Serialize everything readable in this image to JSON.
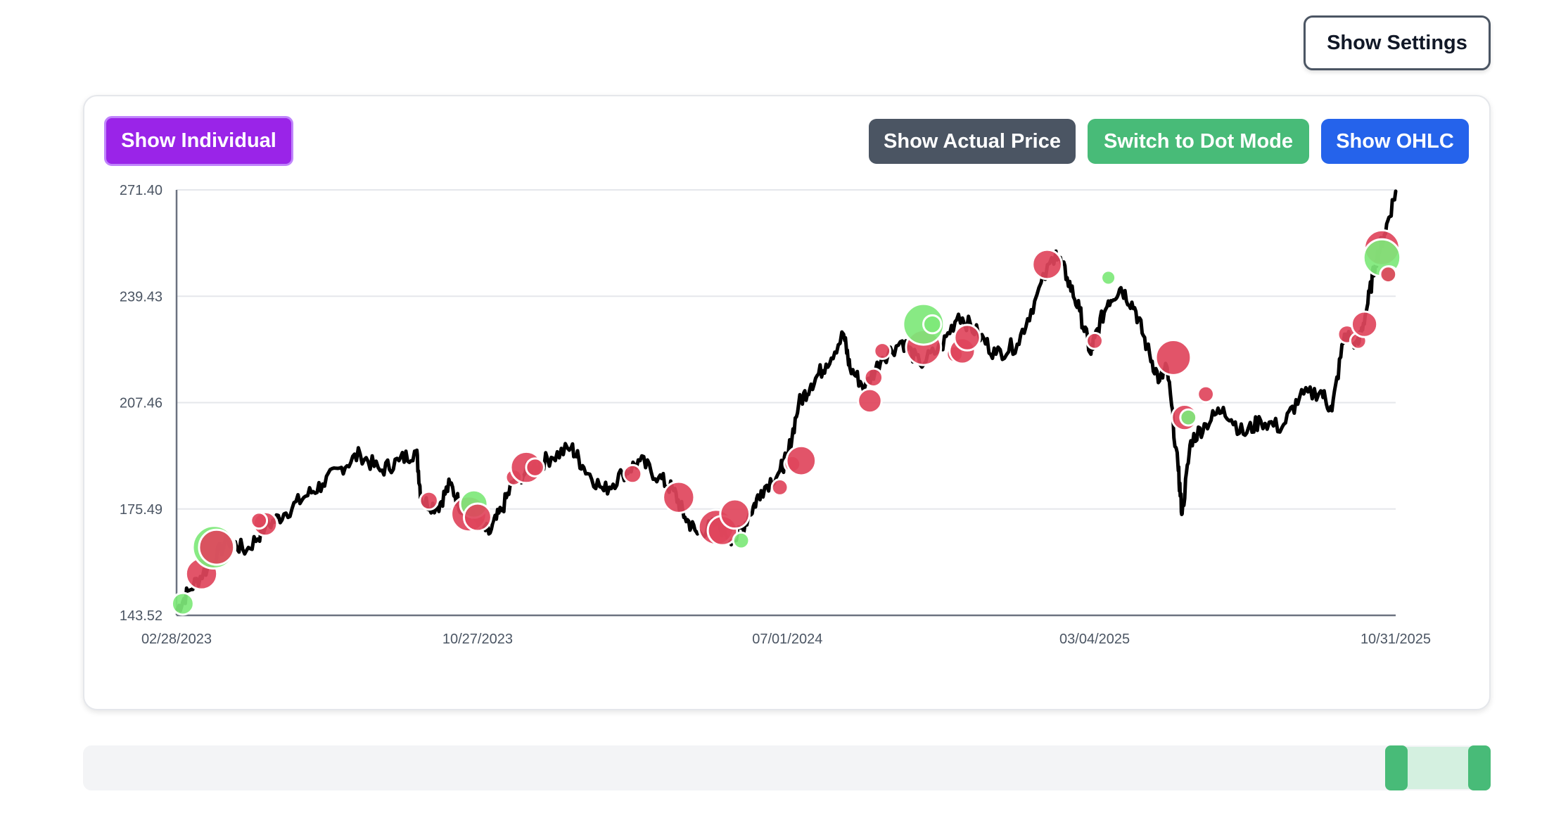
{
  "toolbar": {
    "settings_label": "Show Settings",
    "individual_label": "Show Individual",
    "actual_price_label": "Show Actual Price",
    "dot_mode_label": "Switch to Dot Mode",
    "ohlc_label": "Show OHLC"
  },
  "colors": {
    "price_line": "#000000",
    "buy_marker": "#7ee87a",
    "sell_marker": "#e0455c",
    "individual_button": "#9a24e8",
    "actual_price_button": "#4b5563",
    "dot_mode_button": "#48bb78",
    "ohlc_button": "#2563eb",
    "slider_handle": "#48bb78"
  },
  "range_slider": {
    "start_fraction": 0.94,
    "end_fraction": 1.0
  },
  "chart_data": {
    "type": "line",
    "title": "",
    "xlabel": "",
    "ylabel": "",
    "ylim": [
      143.52,
      271.4
    ],
    "yticks": [
      "143.52",
      "175.49",
      "207.46",
      "239.43",
      "271.40"
    ],
    "xticks": [
      "02/28/2023",
      "10/27/2023",
      "07/01/2024",
      "03/04/2025",
      "10/31/2025"
    ],
    "grid": "horizontal",
    "series": [
      {
        "points": [
          [
            "2023-02-28",
            145
          ],
          [
            "2023-03-10",
            151
          ],
          [
            "2023-03-25",
            158
          ],
          [
            "2023-04-10",
            166
          ],
          [
            "2023-04-25",
            163
          ],
          [
            "2023-05-10",
            170
          ],
          [
            "2023-05-25",
            174
          ],
          [
            "2023-06-10",
            179
          ],
          [
            "2023-06-25",
            183
          ],
          [
            "2023-07-10",
            188
          ],
          [
            "2023-07-25",
            192
          ],
          [
            "2023-08-10",
            187
          ],
          [
            "2023-08-25",
            190
          ],
          [
            "2023-09-08",
            193
          ],
          [
            "2023-09-12",
            178
          ],
          [
            "2023-09-25",
            176
          ],
          [
            "2023-10-05",
            183
          ],
          [
            "2023-10-15",
            175
          ],
          [
            "2023-10-27",
            172
          ],
          [
            "2023-11-05",
            168
          ],
          [
            "2023-11-15",
            175
          ],
          [
            "2023-11-25",
            184
          ],
          [
            "2023-12-10",
            188
          ],
          [
            "2023-12-25",
            191
          ],
          [
            "2024-01-10",
            194
          ],
          [
            "2024-01-20",
            188
          ],
          [
            "2024-02-05",
            181
          ],
          [
            "2024-02-20",
            186
          ],
          [
            "2024-03-05",
            190
          ],
          [
            "2024-03-20",
            185
          ],
          [
            "2024-04-01",
            181
          ],
          [
            "2024-04-10",
            173
          ],
          [
            "2024-04-20",
            168
          ],
          [
            "2024-05-05",
            171
          ],
          [
            "2024-05-20",
            166
          ],
          [
            "2024-06-01",
            174
          ],
          [
            "2024-06-10",
            181
          ],
          [
            "2024-06-25",
            187
          ],
          [
            "2024-07-01",
            191
          ],
          [
            "2024-07-10",
            207
          ],
          [
            "2024-07-20",
            213
          ],
          [
            "2024-08-01",
            219
          ],
          [
            "2024-08-15",
            228
          ],
          [
            "2024-08-20",
            218
          ],
          [
            "2024-09-01",
            212
          ],
          [
            "2024-09-15",
            221
          ],
          [
            "2024-10-01",
            226
          ],
          [
            "2024-10-15",
            219
          ],
          [
            "2024-11-01",
            224
          ],
          [
            "2024-11-15",
            234
          ],
          [
            "2024-12-01",
            228
          ],
          [
            "2024-12-15",
            222
          ],
          [
            "2025-01-01",
            225
          ],
          [
            "2025-01-15",
            238
          ],
          [
            "2025-02-01",
            253
          ],
          [
            "2025-02-10",
            245
          ],
          [
            "2025-02-20",
            235
          ],
          [
            "2025-03-01",
            222
          ],
          [
            "2025-03-04",
            227
          ],
          [
            "2025-03-15",
            238
          ],
          [
            "2025-03-25",
            242
          ],
          [
            "2025-04-05",
            236
          ],
          [
            "2025-04-15",
            224
          ],
          [
            "2025-04-25",
            214
          ],
          [
            "2025-05-01",
            218
          ],
          [
            "2025-05-10",
            187
          ],
          [
            "2025-05-13",
            174
          ],
          [
            "2025-05-20",
            196
          ],
          [
            "2025-06-01",
            201
          ],
          [
            "2025-06-15",
            206
          ],
          [
            "2025-07-01",
            198
          ],
          [
            "2025-07-15",
            202
          ],
          [
            "2025-08-01",
            200
          ],
          [
            "2025-08-15",
            209
          ],
          [
            "2025-09-01",
            211
          ],
          [
            "2025-09-10",
            205
          ],
          [
            "2025-09-20",
            228
          ],
          [
            "2025-10-01",
            225
          ],
          [
            "2025-10-08",
            236
          ],
          [
            "2025-10-15",
            250
          ],
          [
            "2025-10-22",
            258
          ],
          [
            "2025-10-31",
            271
          ]
        ]
      }
    ],
    "markers": [
      {
        "date": "2023-03-05",
        "price": 147,
        "signal": "buy",
        "size": 7
      },
      {
        "date": "2023-03-20",
        "price": 156,
        "signal": "sell",
        "size": 12
      },
      {
        "date": "2023-03-30",
        "price": 164,
        "signal": "buy",
        "size": 18
      },
      {
        "date": "2023-04-01",
        "price": 164,
        "signal": "sell",
        "size": 14
      },
      {
        "date": "2023-05-10",
        "price": 171,
        "signal": "sell",
        "size": 8
      },
      {
        "date": "2023-05-05",
        "price": 172,
        "signal": "sell",
        "size": 4
      },
      {
        "date": "2023-09-18",
        "price": 178,
        "signal": "sell",
        "size": 5
      },
      {
        "date": "2023-10-20",
        "price": 174,
        "signal": "sell",
        "size": 14
      },
      {
        "date": "2023-10-24",
        "price": 177,
        "signal": "buy",
        "size": 10
      },
      {
        "date": "2023-10-27",
        "price": 173,
        "signal": "sell",
        "size": 10
      },
      {
        "date": "2023-11-25",
        "price": 185,
        "signal": "sell",
        "size": 4
      },
      {
        "date": "2023-12-05",
        "price": 188,
        "signal": "sell",
        "size": 12
      },
      {
        "date": "2023-12-12",
        "price": 188,
        "signal": "sell",
        "size": 5
      },
      {
        "date": "2024-02-28",
        "price": 186,
        "signal": "sell",
        "size": 5
      },
      {
        "date": "2024-04-05",
        "price": 179,
        "signal": "sell",
        "size": 12
      },
      {
        "date": "2024-05-05",
        "price": 170,
        "signal": "sell",
        "size": 14
      },
      {
        "date": "2024-05-10",
        "price": 169,
        "signal": "sell",
        "size": 11
      },
      {
        "date": "2024-05-20",
        "price": 174,
        "signal": "sell",
        "size": 11
      },
      {
        "date": "2024-05-25",
        "price": 166,
        "signal": "buy",
        "size": 4
      },
      {
        "date": "2024-06-25",
        "price": 182,
        "signal": "sell",
        "size": 4
      },
      {
        "date": "2024-07-05",
        "price": 189,
        "signal": "sell",
        "size": 4
      },
      {
        "date": "2024-07-12",
        "price": 190,
        "signal": "sell",
        "size": 11
      },
      {
        "date": "2024-09-05",
        "price": 208,
        "signal": "sell",
        "size": 8
      },
      {
        "date": "2024-09-08",
        "price": 215,
        "signal": "sell",
        "size": 5
      },
      {
        "date": "2024-09-15",
        "price": 223,
        "signal": "sell",
        "size": 4
      },
      {
        "date": "2024-10-18",
        "price": 224,
        "signal": "sell",
        "size": 14
      },
      {
        "date": "2024-10-18",
        "price": 231,
        "signal": "buy",
        "size": 17
      },
      {
        "date": "2024-10-25",
        "price": 231,
        "signal": "buy",
        "size": 5
      },
      {
        "date": "2024-11-12",
        "price": 222,
        "signal": "sell",
        "size": 4
      },
      {
        "date": "2024-11-18",
        "price": 223,
        "signal": "sell",
        "size": 9
      },
      {
        "date": "2024-11-22",
        "price": 227,
        "signal": "sell",
        "size": 9
      },
      {
        "date": "2025-01-25",
        "price": 249,
        "signal": "sell",
        "size": 11
      },
      {
        "date": "2025-03-04",
        "price": 226,
        "signal": "sell",
        "size": 4
      },
      {
        "date": "2025-03-15",
        "price": 245,
        "signal": "buy",
        "size": 3
      },
      {
        "date": "2025-05-06",
        "price": 221,
        "signal": "sell",
        "size": 14
      },
      {
        "date": "2025-05-15",
        "price": 203,
        "signal": "sell",
        "size": 9
      },
      {
        "date": "2025-05-18",
        "price": 203,
        "signal": "buy",
        "size": 4
      },
      {
        "date": "2025-06-01",
        "price": 210,
        "signal": "sell",
        "size": 4
      },
      {
        "date": "2025-09-22",
        "price": 228,
        "signal": "sell",
        "size": 5
      },
      {
        "date": "2025-10-01",
        "price": 226,
        "signal": "sell",
        "size": 4
      },
      {
        "date": "2025-10-06",
        "price": 231,
        "signal": "sell",
        "size": 9
      },
      {
        "date": "2025-10-20",
        "price": 254,
        "signal": "sell",
        "size": 14
      },
      {
        "date": "2025-10-20",
        "price": 251,
        "signal": "buy",
        "size": 15
      },
      {
        "date": "2025-10-26",
        "price": 246,
        "signal": "buy",
        "size": 4
      },
      {
        "date": "2025-10-25",
        "price": 246,
        "signal": "sell",
        "size": 4
      }
    ]
  }
}
